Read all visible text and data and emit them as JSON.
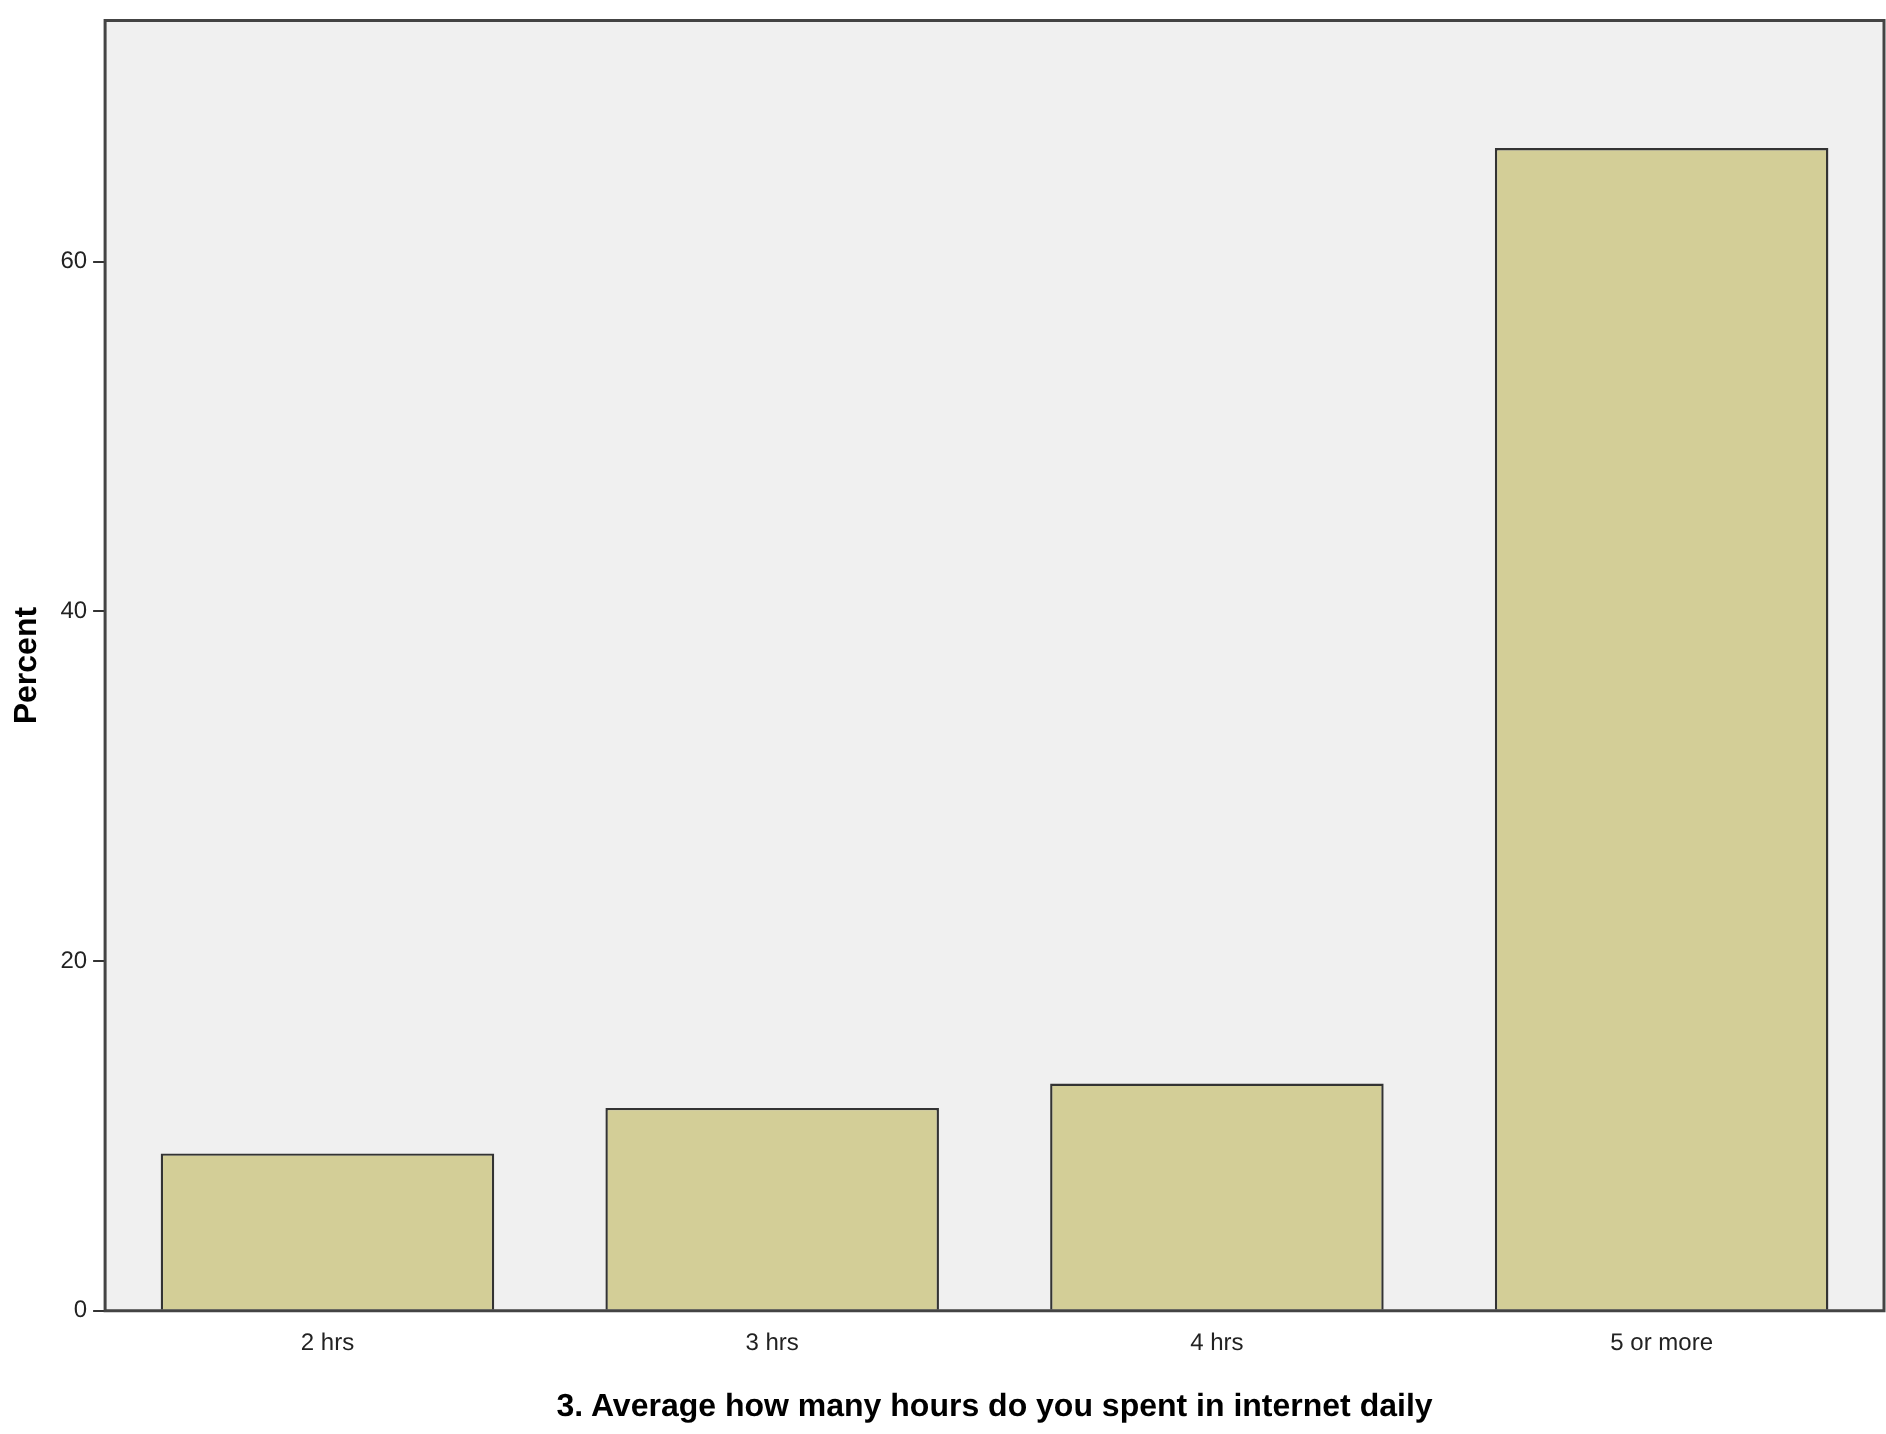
{
  "chart_data": {
    "type": "bar",
    "xlabel": "3. Average how many hours do you spent in internet daily",
    "ylabel": "Percent",
    "categories": [
      "2 hrs",
      "3 hrs",
      "4 hrs",
      "5 or more"
    ],
    "values": [
      9.0,
      11.6,
      13.0,
      66.5
    ],
    "color": "#d3ce97",
    "ylim": [
      0,
      73.8
    ],
    "yticks": [
      0,
      20,
      40,
      60
    ],
    "grid": false,
    "legend": false
  }
}
